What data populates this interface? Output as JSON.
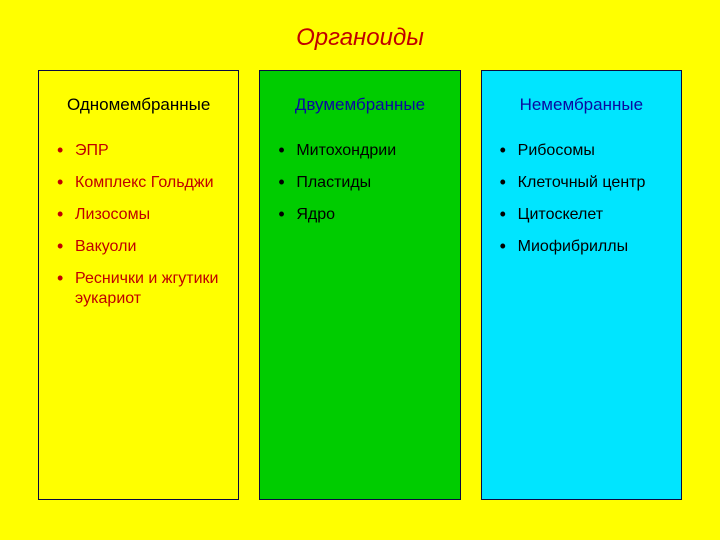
{
  "title": {
    "text": "Органоиды",
    "color": "#c00000"
  },
  "columns": [
    {
      "title": "Одномембранные",
      "title_color": "#000000",
      "bg_color": "#ffff00",
      "text_color": "#c00000",
      "bullet_color": "#c00000",
      "items": [
        "ЭПР",
        "Комплекс Гольджи",
        "Лизосомы",
        "Вакуоли",
        "Реснички и жгутики эукариот"
      ]
    },
    {
      "title": "Двумембранные",
      "title_color": "#0a0aa0",
      "bg_color": "#00cc00",
      "text_color": "#000000",
      "bullet_color": "#000000",
      "items": [
        "Митохондрии",
        "Пластиды",
        "Ядро"
      ]
    },
    {
      "title": "Немембранные",
      "title_color": "#0a0aa0",
      "bg_color": "#00e5ff",
      "text_color": "#000000",
      "bullet_color": "#000000",
      "items": [
        "Рибосомы",
        "Клеточный центр",
        "Цитоскелет",
        "Миофибриллы"
      ]
    }
  ]
}
